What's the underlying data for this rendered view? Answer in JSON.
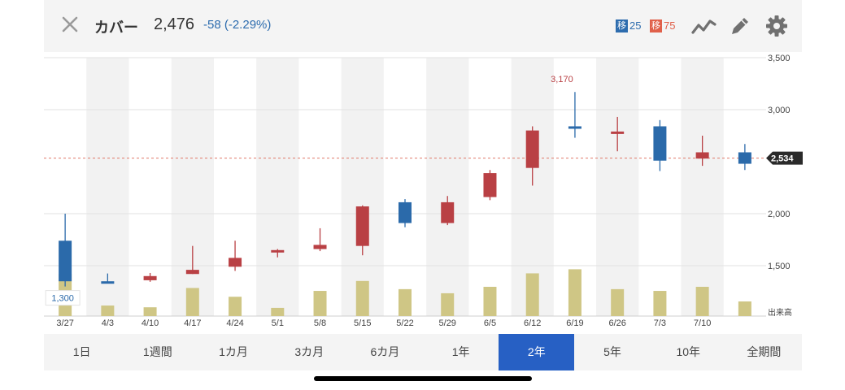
{
  "header": {
    "name": "カバー",
    "price": "2,476",
    "change": "-58 (-2.29%)",
    "ma_short": {
      "label": "移",
      "value": "25",
      "color": "#2d6cae"
    },
    "ma_long": {
      "label": "移",
      "value": "75",
      "color": "#e0604a"
    },
    "icons": [
      "close-icon",
      "line-chart-icon",
      "pencil-icon",
      "gear-icon"
    ]
  },
  "chart_data": {
    "type": "candlestick",
    "categories": [
      "3/27",
      "4/3",
      "4/10",
      "4/17",
      "4/24",
      "5/1",
      "5/8",
      "5/15",
      "5/22",
      "5/29",
      "6/5",
      "6/12",
      "6/19",
      "6/26",
      "7/3",
      "7/10",
      ""
    ],
    "ohlc": [
      {
        "o": 1740,
        "h": 2000,
        "l": 1300,
        "c": 1350
      },
      {
        "o": 1350,
        "h": 1425,
        "l": 1335,
        "c": 1345
      },
      {
        "o": 1360,
        "h": 1430,
        "l": 1345,
        "c": 1400
      },
      {
        "o": 1420,
        "h": 1690,
        "l": 1420,
        "c": 1460
      },
      {
        "o": 1490,
        "h": 1740,
        "l": 1450,
        "c": 1575
      },
      {
        "o": 1640,
        "h": 1660,
        "l": 1580,
        "c": 1650
      },
      {
        "o": 1660,
        "h": 1860,
        "l": 1640,
        "c": 1700
      },
      {
        "o": 1690,
        "h": 2080,
        "l": 1600,
        "c": 2070
      },
      {
        "o": 2110,
        "h": 2140,
        "l": 1870,
        "c": 1910
      },
      {
        "o": 1910,
        "h": 2170,
        "l": 1890,
        "c": 2110
      },
      {
        "o": 2160,
        "h": 2420,
        "l": 2130,
        "c": 2390
      },
      {
        "o": 2440,
        "h": 2840,
        "l": 2270,
        "c": 2800
      },
      {
        "o": 2840,
        "h": 3170,
        "l": 2730,
        "c": 2820
      },
      {
        "o": 2770,
        "h": 2930,
        "l": 2600,
        "c": 2790
      },
      {
        "o": 2840,
        "h": 2900,
        "l": 2410,
        "c": 2510
      },
      {
        "o": 2530,
        "h": 2750,
        "l": 2460,
        "c": 2590
      },
      {
        "o": 2590,
        "h": 2670,
        "l": 2420,
        "c": 2480
      }
    ],
    "volume": [
      0.72,
      0.18,
      0.15,
      0.48,
      0.33,
      0.14,
      0.43,
      0.6,
      0.46,
      0.39,
      0.5,
      0.73,
      0.8,
      0.46,
      0.43,
      0.5,
      0.25
    ],
    "ylim": [
      1000,
      3500
    ],
    "yticks": [
      {
        "v": 3500,
        "label": "3,500"
      },
      {
        "v": 3000,
        "label": "3,000"
      },
      {
        "v": 2000,
        "label": "2,000"
      },
      {
        "v": 1500,
        "label": "1,500"
      }
    ],
    "volume_label": "出来高",
    "high_label": "3,170",
    "low_label": "1,300",
    "current_price": 2534,
    "current_label": "2,534",
    "up_color": "#b94044",
    "down_color": "#2b6aaa",
    "volume_color": "#cfc685",
    "ref_line_color": "#e07a6a"
  },
  "periods": [
    {
      "label": "1日",
      "active": false
    },
    {
      "label": "1週間",
      "active": false
    },
    {
      "label": "1カ月",
      "active": false
    },
    {
      "label": "3カ月",
      "active": false
    },
    {
      "label": "6カ月",
      "active": false
    },
    {
      "label": "1年",
      "active": false
    },
    {
      "label": "2年",
      "active": true
    },
    {
      "label": "5年",
      "active": false
    },
    {
      "label": "10年",
      "active": false
    },
    {
      "label": "全期間",
      "active": false
    }
  ]
}
